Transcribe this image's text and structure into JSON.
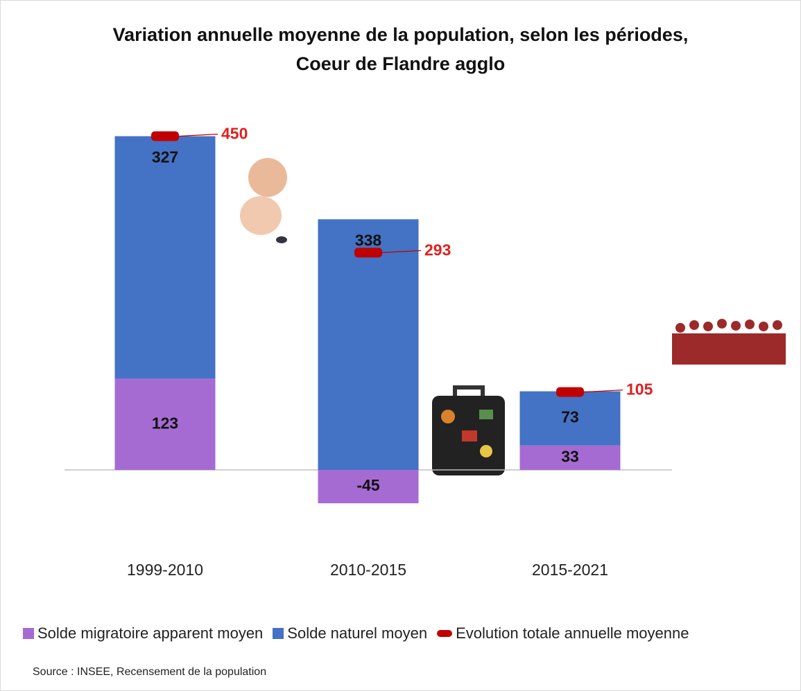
{
  "chart_data": {
    "type": "bar",
    "stacked": true,
    "title": "Variation annuelle moyenne de la population, selon les périodes, Coeur de Flandre agglo",
    "categories": [
      "1999-2010",
      "2010-2015",
      "2015-2021"
    ],
    "series": [
      {
        "name": "Solde migratoire apparent moyen",
        "color": "#a66bd3",
        "values": [
          123,
          -45,
          33
        ]
      },
      {
        "name": "Solde naturel moyen",
        "color": "#4472c4",
        "values": [
          327,
          338,
          73
        ]
      },
      {
        "name": "Evolution totale annuelle moyenne",
        "color": "#c00000",
        "type": "marker",
        "values": [
          450,
          293,
          105
        ]
      }
    ],
    "ylim": [
      -100,
      500
    ],
    "source": "Source : INSEE, Recensement de la population"
  }
}
